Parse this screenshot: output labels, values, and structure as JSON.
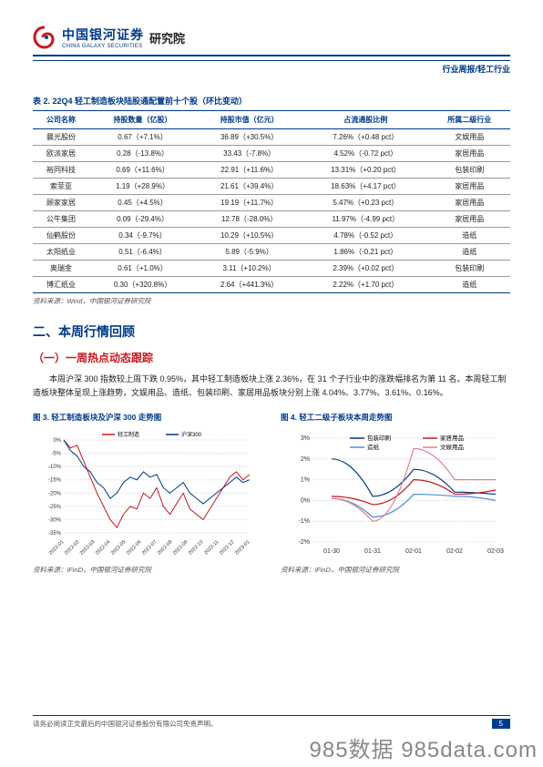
{
  "header": {
    "logo_cn": "中国银河证券",
    "logo_en": "CHINA GALAXY SECURITIES",
    "logo_right": "研究院",
    "sub": "行业周报/轻工行业"
  },
  "table": {
    "title": "表 2. 22Q4 轻工制造板块陆股通配置前十个股（环比变动）",
    "headers": [
      "公司名称",
      "持股数量（亿股）",
      "持股市值（亿元）",
      "占流通股比例",
      "所属二级行业"
    ],
    "rows": [
      [
        "晨光股份",
        "0.67（+7.1%）",
        "36.89（+30.5%）",
        "7.26%（+0.48 pct）",
        "文娱用品"
      ],
      [
        "欧派家居",
        "0.28（-13.8%）",
        "33.43（-7.8%）",
        "4.52%（-0.72 pct）",
        "家居用品"
      ],
      [
        "裕同科技",
        "0.69（+11.6%）",
        "22.91（+11.6%）",
        "13.31%（+0.20 pct）",
        "包装印刷"
      ],
      [
        "索菲亚",
        "1.19（+28.9%）",
        "21.61（+39.4%）",
        "18.63%（+4.17 pct）",
        "家居用品"
      ],
      [
        "顾家家居",
        "0.45（+4.5%）",
        "19.19（+11.7%）",
        "5.47%（+0.23 pct）",
        "家居用品"
      ],
      [
        "公牛集团",
        "0.09（-29.4%）",
        "12.78（-28.0%）",
        "11.97%（-4.99 pct）",
        "家居用品"
      ],
      [
        "仙鹤股份",
        "0.34（-9.7%）",
        "10.29（+10.5%）",
        "4.78%（-0.52 pct）",
        "造纸"
      ],
      [
        "太阳纸业",
        "0.51（-6.4%）",
        "5.89（-5.9%）",
        "1.86%（-0.21 pct）",
        "造纸"
      ],
      [
        "奥瑞金",
        "0.61（+1.0%）",
        "3.11（+10.2%）",
        "2.39%（+0.02 pct）",
        "包装印刷"
      ],
      [
        "博汇纸业",
        "0.30（+320.8%）",
        "2.64（+441.3%）",
        "2.22%（+1.70 pct）",
        "造纸"
      ]
    ],
    "source": "资料来源：Wind，中国银河证券研究院"
  },
  "section": {
    "h2": "二、本周行情回顾",
    "h3": "（一）一周热点动态跟踪",
    "body": "本周沪深 300 指数较上周下跌 0.95%，其中轻工制造板块上涨 2.36%，在 31 个子行业中的涨跌幅排名为第 11 名。本周轻工制造板块整体呈现上涨趋势，文娱用品、造纸、包装印刷、家居用品板块分别上涨 4.04%、3.77%、3.61%、0.16%。"
  },
  "chart1": {
    "title": "图 3. 轻工制造板块及沪深 300 走势图",
    "legend": [
      "轻工制造",
      "沪深300"
    ],
    "legend_colors": [
      "#c8171e",
      "#003a8c"
    ],
    "y_ticks": [
      "0%",
      "-5%",
      "-10%",
      "-15%",
      "-20%",
      "-25%",
      "-30%",
      "-35%"
    ],
    "x_ticks": [
      "2022-01",
      "2022-02",
      "2022-03",
      "2022-04",
      "2022-05",
      "2022-06",
      "2022-07",
      "2022-08",
      "2022-09",
      "2022-10",
      "2022-11",
      "2022-12",
      "2023-01"
    ],
    "series1_color": "#c8171e",
    "series2_color": "#003a8c",
    "grid_color": "#ccc",
    "source": "资料来源：iFinD，中国银河证券研究院"
  },
  "chart2": {
    "title": "图 4. 轻工二级子板块本周走势图",
    "legend": [
      "包装印刷",
      "家居用品",
      "造纸",
      "文娱用品"
    ],
    "legend_colors": [
      "#003a8c",
      "#c8171e",
      "#4a90d9",
      "#e57f8c"
    ],
    "y_ticks": [
      "3%",
      "2%",
      "1%",
      "0%",
      "-1%",
      "-2%"
    ],
    "x_ticks": [
      "01-30",
      "01-31",
      "02-01",
      "02-02",
      "02-03"
    ],
    "grid_color": "#ccc",
    "source": "资料来源：iFinD，中国银河证券研究院"
  },
  "footer": {
    "text": "请务必阅读正文最后的中国银河证券股份有限公司免责声明。",
    "page": "5"
  },
  "watermark": "985数据 985data.com"
}
